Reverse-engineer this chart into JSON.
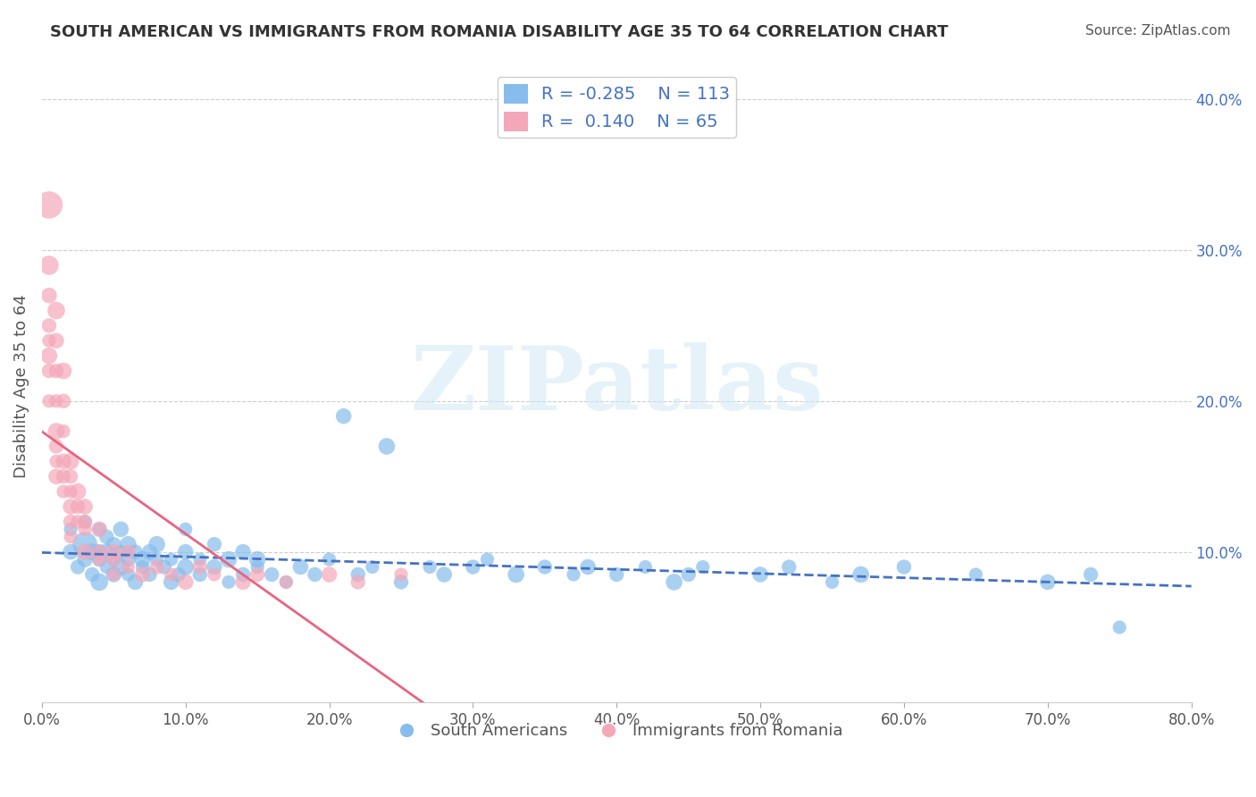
{
  "title": "SOUTH AMERICAN VS IMMIGRANTS FROM ROMANIA DISABILITY AGE 35 TO 64 CORRELATION CHART",
  "source": "Source: ZipAtlas.com",
  "xlabel": "",
  "ylabel": "Disability Age 35 to 64",
  "watermark": "ZIPatlas",
  "xlim": [
    0.0,
    0.8
  ],
  "ylim": [
    0.0,
    0.42
  ],
  "xticks": [
    0.0,
    0.1,
    0.2,
    0.3,
    0.4,
    0.5,
    0.6,
    0.7,
    0.8
  ],
  "yticks_left": [],
  "yticks_right": [
    0.1,
    0.2,
    0.3,
    0.4
  ],
  "ytick_labels_right": [
    "10.0%",
    "20.0%",
    "30.0%",
    "40.0%"
  ],
  "xtick_labels": [
    "0.0%",
    "10.0%",
    "20.0%",
    "30.0%",
    "40.0%",
    "50.0%",
    "60.0%",
    "70.0%",
    "80.0%"
  ],
  "blue_color": "#87BDEC",
  "pink_color": "#F4A7B9",
  "blue_line_color": "#4472C4",
  "pink_line_color": "#E86480",
  "blue_R": -0.285,
  "blue_N": 113,
  "pink_R": 0.14,
  "pink_N": 65,
  "legend_label_blue": "South Americans",
  "legend_label_pink": "Immigrants from Romania",
  "blue_scatter_x": [
    0.02,
    0.02,
    0.025,
    0.03,
    0.03,
    0.03,
    0.035,
    0.035,
    0.04,
    0.04,
    0.04,
    0.04,
    0.045,
    0.045,
    0.045,
    0.05,
    0.05,
    0.05,
    0.055,
    0.055,
    0.055,
    0.06,
    0.06,
    0.06,
    0.065,
    0.065,
    0.07,
    0.07,
    0.075,
    0.075,
    0.08,
    0.08,
    0.085,
    0.09,
    0.09,
    0.095,
    0.1,
    0.1,
    0.1,
    0.11,
    0.11,
    0.12,
    0.12,
    0.13,
    0.13,
    0.14,
    0.14,
    0.15,
    0.15,
    0.16,
    0.17,
    0.18,
    0.19,
    0.2,
    0.21,
    0.22,
    0.23,
    0.24,
    0.25,
    0.27,
    0.28,
    0.3,
    0.31,
    0.33,
    0.35,
    0.37,
    0.38,
    0.4,
    0.42,
    0.44,
    0.45,
    0.46,
    0.5,
    0.52,
    0.55,
    0.57,
    0.6,
    0.65,
    0.7,
    0.73,
    0.75
  ],
  "blue_scatter_y": [
    0.1,
    0.115,
    0.09,
    0.105,
    0.095,
    0.12,
    0.085,
    0.1,
    0.08,
    0.095,
    0.115,
    0.1,
    0.09,
    0.1,
    0.11,
    0.085,
    0.095,
    0.105,
    0.09,
    0.1,
    0.115,
    0.095,
    0.105,
    0.085,
    0.08,
    0.1,
    0.09,
    0.095,
    0.085,
    0.1,
    0.095,
    0.105,
    0.09,
    0.08,
    0.095,
    0.085,
    0.1,
    0.115,
    0.09,
    0.085,
    0.095,
    0.09,
    0.105,
    0.08,
    0.095,
    0.085,
    0.1,
    0.09,
    0.095,
    0.085,
    0.08,
    0.09,
    0.085,
    0.095,
    0.19,
    0.085,
    0.09,
    0.17,
    0.08,
    0.09,
    0.085,
    0.09,
    0.095,
    0.085,
    0.09,
    0.085,
    0.09,
    0.085,
    0.09,
    0.08,
    0.085,
    0.09,
    0.085,
    0.09,
    0.08,
    0.085,
    0.09,
    0.085,
    0.08,
    0.085,
    0.05
  ],
  "blue_scatter_size": [
    40,
    30,
    35,
    100,
    40,
    30,
    35,
    45,
    50,
    35,
    30,
    40,
    30,
    45,
    35,
    40,
    30,
    35,
    45,
    30,
    40,
    35,
    45,
    30,
    40,
    35,
    30,
    45,
    35,
    40,
    30,
    45,
    35,
    40,
    30,
    35,
    40,
    30,
    45,
    35,
    30,
    40,
    35,
    30,
    45,
    35,
    40,
    30,
    45,
    35,
    30,
    40,
    35,
    30,
    40,
    35,
    30,
    45,
    35,
    30,
    40,
    35,
    30,
    45,
    35,
    30,
    40,
    35,
    30,
    45,
    35,
    30,
    40,
    35,
    30,
    45,
    35,
    30,
    40,
    35,
    30
  ],
  "pink_scatter_x": [
    0.005,
    0.005,
    0.005,
    0.005,
    0.005,
    0.005,
    0.005,
    0.005,
    0.01,
    0.01,
    0.01,
    0.01,
    0.01,
    0.01,
    0.01,
    0.01,
    0.015,
    0.015,
    0.015,
    0.015,
    0.015,
    0.015,
    0.02,
    0.02,
    0.02,
    0.02,
    0.02,
    0.02,
    0.025,
    0.025,
    0.025,
    0.03,
    0.03,
    0.03,
    0.03,
    0.04,
    0.04,
    0.04,
    0.05,
    0.05,
    0.05,
    0.06,
    0.06,
    0.07,
    0.08,
    0.09,
    0.1,
    0.11,
    0.12,
    0.14,
    0.15,
    0.17,
    0.2,
    0.22,
    0.25
  ],
  "pink_scatter_y": [
    0.33,
    0.29,
    0.27,
    0.25,
    0.24,
    0.23,
    0.22,
    0.2,
    0.26,
    0.24,
    0.22,
    0.2,
    0.18,
    0.17,
    0.16,
    0.15,
    0.22,
    0.2,
    0.18,
    0.16,
    0.15,
    0.14,
    0.16,
    0.15,
    0.14,
    0.13,
    0.12,
    0.11,
    0.14,
    0.13,
    0.12,
    0.13,
    0.12,
    0.115,
    0.1,
    0.115,
    0.1,
    0.095,
    0.1,
    0.095,
    0.085,
    0.1,
    0.09,
    0.085,
    0.09,
    0.085,
    0.08,
    0.09,
    0.085,
    0.08,
    0.085,
    0.08,
    0.085,
    0.08,
    0.085
  ],
  "pink_scatter_size": [
    120,
    60,
    40,
    35,
    30,
    45,
    35,
    30,
    50,
    40,
    35,
    30,
    45,
    35,
    30,
    40,
    45,
    35,
    30,
    40,
    35,
    30,
    45,
    35,
    30,
    40,
    35,
    30,
    45,
    35,
    30,
    40,
    35,
    30,
    45,
    40,
    35,
    30,
    40,
    35,
    30,
    35,
    30,
    40,
    35,
    30,
    40,
    35,
    30,
    40,
    35,
    30,
    40,
    35,
    30
  ],
  "grid_color": "#CCCCCC",
  "background_color": "#FFFFFF"
}
